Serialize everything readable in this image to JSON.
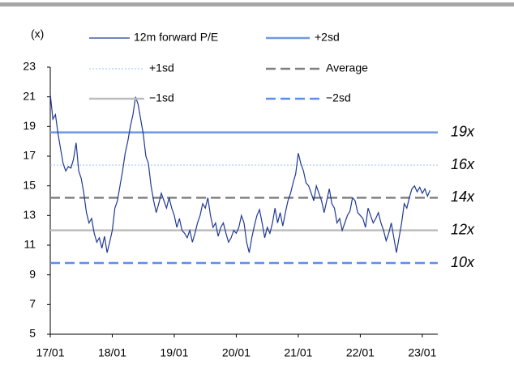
{
  "chart_data": {
    "type": "line",
    "y_label": "(x)",
    "xlim": [
      0,
      75
    ],
    "xticks": [
      {
        "value": 0,
        "label": "17/01"
      },
      {
        "value": 12,
        "label": "18/01"
      },
      {
        "value": 24,
        "label": "19/01"
      },
      {
        "value": 36,
        "label": "20/01"
      },
      {
        "value": 48,
        "label": "21/01"
      },
      {
        "value": 60,
        "label": "22/01"
      },
      {
        "value": 72,
        "label": "23/01"
      }
    ],
    "ylim": [
      5,
      23
    ],
    "yticks": [
      5,
      7,
      9,
      11,
      13,
      15,
      17,
      19,
      21,
      23
    ],
    "x": [
      0,
      0.5,
      1,
      1.5,
      2,
      2.5,
      3,
      3.5,
      4,
      4.5,
      5,
      5.5,
      6,
      6.5,
      7,
      7.5,
      8,
      8.5,
      9,
      9.5,
      10,
      10.5,
      11,
      11.5,
      12,
      12.5,
      13,
      13.5,
      14,
      14.5,
      15,
      15.5,
      16,
      16.5,
      17,
      17.5,
      18,
      18.5,
      19,
      19.5,
      20,
      20.5,
      21,
      21.5,
      22,
      22.5,
      23,
      23.5,
      24,
      24.5,
      25,
      25.5,
      26,
      26.5,
      27,
      27.5,
      28,
      28.5,
      29,
      29.5,
      30,
      30.5,
      31,
      31.5,
      32,
      32.5,
      33,
      33.5,
      34,
      34.5,
      35,
      35.5,
      36,
      36.5,
      37,
      37.5,
      38,
      38.5,
      39,
      39.5,
      40,
      40.5,
      41,
      41.5,
      42,
      42.5,
      43,
      43.5,
      44,
      44.5,
      45,
      45.5,
      46,
      46.5,
      47,
      47.5,
      48,
      48.5,
      49,
      49.5,
      50,
      50.5,
      51,
      51.5,
      52,
      52.5,
      53,
      53.5,
      54,
      54.5,
      55,
      55.5,
      56,
      56.5,
      57,
      57.5,
      58,
      58.5,
      59,
      59.5,
      60,
      60.5,
      61,
      61.5,
      62,
      62.5,
      63,
      63.5,
      64,
      64.5,
      65,
      65.5,
      66,
      66.5,
      67,
      67.5,
      68,
      68.5,
      69,
      69.5,
      70,
      70.5,
      71,
      71.5,
      72,
      72.5,
      73,
      73.5
    ],
    "series": [
      {
        "name": "12m forward P/E",
        "color": "#1f3a93",
        "values": [
          21.2,
          19.5,
          19.8,
          18.5,
          17.5,
          16.5,
          16.0,
          16.3,
          16.2,
          16.8,
          17.9,
          16.0,
          15.5,
          14.5,
          13.2,
          12.5,
          12.8,
          11.8,
          11.2,
          11.5,
          10.8,
          11.6,
          10.5,
          11.2,
          12.0,
          13.5,
          14.0,
          15.0,
          16.0,
          17.2,
          18.0,
          19.0,
          19.8,
          21.0,
          20.5,
          19.5,
          18.5,
          17.0,
          16.5,
          15.0,
          14.0,
          13.2,
          13.8,
          14.5,
          14.0,
          13.5,
          14.2,
          13.5,
          13.0,
          12.2,
          12.8,
          12.0,
          11.8,
          11.5,
          12.0,
          11.2,
          11.8,
          12.5,
          13.0,
          13.8,
          13.5,
          14.2,
          13.0,
          12.2,
          12.5,
          11.6,
          12.2,
          12.5,
          11.8,
          11.2,
          11.5,
          12.0,
          11.8,
          12.2,
          13.0,
          12.5,
          11.2,
          10.5,
          11.5,
          12.3,
          13.0,
          13.4,
          12.5,
          11.5,
          12.2,
          11.8,
          12.5,
          13.5,
          12.5,
          13.2,
          12.3,
          13.2,
          14.0,
          14.5,
          15.2,
          15.8,
          17.2,
          16.5,
          16.0,
          15.2,
          15.0,
          14.5,
          14.0,
          15.0,
          14.5,
          14.0,
          13.2,
          14.0,
          14.8,
          13.8,
          13.5,
          12.5,
          12.8,
          12.0,
          12.5,
          13.0,
          13.3,
          14.2,
          14.0,
          13.2,
          13.0,
          12.8,
          12.2,
          13.5,
          13.0,
          12.5,
          12.8,
          13.2,
          12.5,
          12.0,
          11.3,
          11.8,
          12.5,
          11.5,
          10.5,
          11.5,
          12.5,
          13.8,
          13.5,
          14.2,
          14.8,
          15.0,
          14.6,
          14.9,
          14.5,
          14.8,
          14.3,
          14.7
        ]
      }
    ],
    "reference_lines": [
      {
        "name": "+2sd",
        "value": 18.6,
        "label": "19x",
        "color": "#6f9ae0",
        "style": "solid"
      },
      {
        "name": "+1sd",
        "value": 16.4,
        "label": "16x",
        "color": "#9ec0ee",
        "style": "dotted"
      },
      {
        "name": "Average",
        "value": 14.2,
        "label": "14x",
        "color": "#808080",
        "style": "dashed"
      },
      {
        "name": "−1sd",
        "value": 12.0,
        "label": "12x",
        "color": "#bdbdbd",
        "style": "solid"
      },
      {
        "name": "−2sd",
        "value": 9.8,
        "label": "10x",
        "color": "#5b8ee6",
        "style": "dashed"
      }
    ]
  }
}
